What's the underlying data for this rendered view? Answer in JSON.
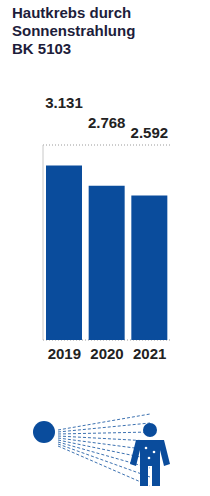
{
  "chart_data": {
    "type": "bar",
    "title": "Hautkrebs durch Sonnenstrahlung BK 5103",
    "categories": [
      "2019",
      "2020",
      "2021"
    ],
    "values": [
      3131,
      2768,
      2592
    ],
    "value_labels": [
      "3.131",
      "2.768",
      "2.592"
    ],
    "color": "#0a4c9c",
    "ylim": [
      0,
      3500
    ],
    "yticks": [
      0,
      1000,
      2000,
      3000
    ],
    "grid": true,
    "data_labels": true,
    "tick_labels": "x"
  }
}
